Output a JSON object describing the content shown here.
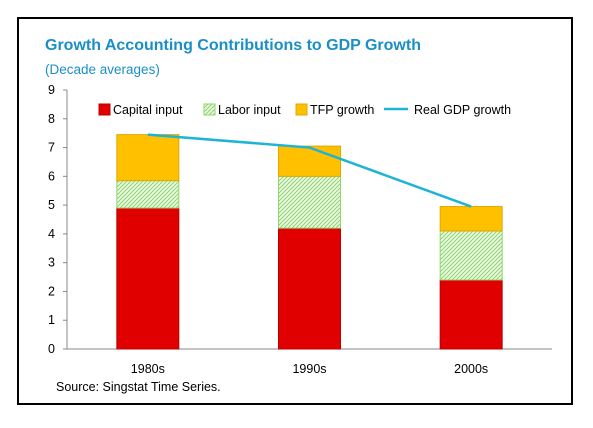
{
  "title": "Growth Accounting Contributions to GDP Growth",
  "subtitle": "(Decade averages)",
  "source": "Source: Singstat Time Series.",
  "colors": {
    "capital": "#e00000",
    "labor": "#c6efb3",
    "tfp": "#ffc000",
    "line": "#1fb4d4",
    "title": "#1a8fc7"
  },
  "chart_data": {
    "type": "bar",
    "stacked": true,
    "categories": [
      "1980s",
      "1990s",
      "2000s"
    ],
    "series": [
      {
        "name": "Capital input",
        "kind": "bar",
        "values": [
          4.9,
          4.2,
          2.4
        ]
      },
      {
        "name": "Labor input",
        "kind": "bar",
        "values": [
          0.95,
          1.8,
          1.7
        ]
      },
      {
        "name": "TFP growth",
        "kind": "bar",
        "values": [
          1.6,
          1.05,
          0.85
        ]
      },
      {
        "name": "Real GDP growth",
        "kind": "line",
        "values": [
          7.45,
          7.0,
          4.95
        ]
      }
    ],
    "ylim": [
      0,
      9
    ],
    "yticks": [
      "0",
      "1",
      "2",
      "3",
      "4",
      "5",
      "6",
      "7",
      "8",
      "9"
    ],
    "legend": "top",
    "grid": false
  }
}
